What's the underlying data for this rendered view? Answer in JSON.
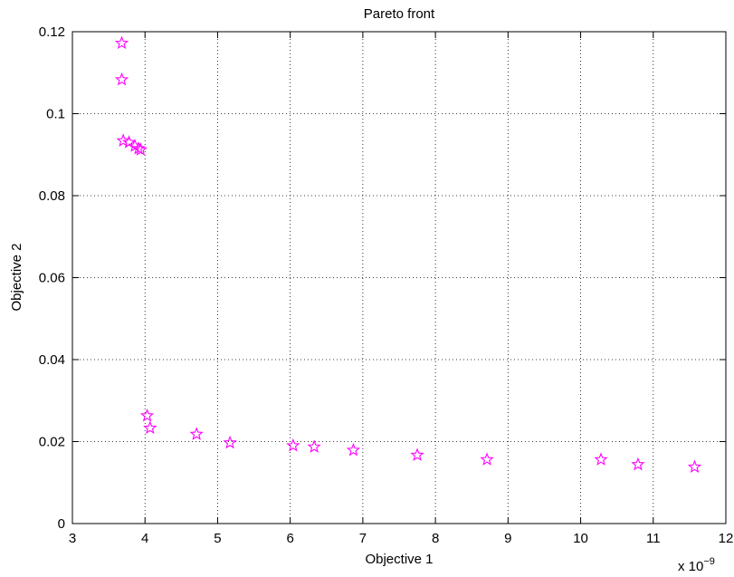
{
  "chart_data": {
    "type": "scatter",
    "title": "Pareto front",
    "xlabel": "Objective 1",
    "ylabel": "Objective 2",
    "x_scale_label": "x 10",
    "x_scale_exponent": "−9",
    "xlim": [
      3,
      12
    ],
    "ylim": [
      0,
      0.12
    ],
    "x_ticks": [
      3,
      4,
      5,
      6,
      7,
      8,
      9,
      10,
      11,
      12
    ],
    "x_tick_labels": [
      "3",
      "4",
      "5",
      "6",
      "7",
      "8",
      "9",
      "10",
      "11",
      "12"
    ],
    "y_ticks": [
      0,
      0.02,
      0.04,
      0.06,
      0.08,
      0.1,
      0.12
    ],
    "y_tick_labels": [
      "0",
      "0.02",
      "0.04",
      "0.06",
      "0.08",
      "0.1",
      "0.12"
    ],
    "grid": true,
    "marker": "star",
    "marker_color": "#ff00ff",
    "points": [
      {
        "x": 3.68,
        "y": 0.1172
      },
      {
        "x": 3.68,
        "y": 0.1083
      },
      {
        "x": 3.7,
        "y": 0.0934
      },
      {
        "x": 3.78,
        "y": 0.093
      },
      {
        "x": 3.86,
        "y": 0.0921
      },
      {
        "x": 3.91,
        "y": 0.0915
      },
      {
        "x": 3.94,
        "y": 0.0912
      },
      {
        "x": 4.03,
        "y": 0.0263
      },
      {
        "x": 4.07,
        "y": 0.0233
      },
      {
        "x": 4.71,
        "y": 0.0218
      },
      {
        "x": 5.17,
        "y": 0.0197
      },
      {
        "x": 6.04,
        "y": 0.019
      },
      {
        "x": 6.33,
        "y": 0.0187
      },
      {
        "x": 6.87,
        "y": 0.0179
      },
      {
        "x": 7.75,
        "y": 0.0167
      },
      {
        "x": 8.71,
        "y": 0.0156
      },
      {
        "x": 10.28,
        "y": 0.0156
      },
      {
        "x": 10.79,
        "y": 0.0144
      },
      {
        "x": 11.57,
        "y": 0.0138
      }
    ]
  }
}
